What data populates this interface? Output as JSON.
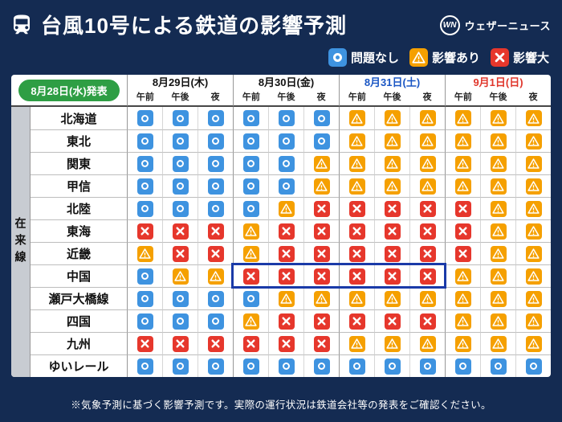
{
  "header": {
    "title": "台風10号による鉄道の影響予測",
    "logo_mark": "WN",
    "logo_text": "ウェザーニュース"
  },
  "legend": [
    {
      "symbol": "O",
      "label": "問題なし"
    },
    {
      "symbol": "A",
      "label": "影響あり"
    },
    {
      "symbol": "X",
      "label": "影響大"
    }
  ],
  "chart_data": {
    "type": "table",
    "title": "台風10号による鉄道の影響予測",
    "announced": "8月28日(水)発表",
    "category_label": "在来線",
    "time_slots": [
      "午前",
      "午後",
      "夜"
    ],
    "dates": [
      {
        "label": "8月29日(木)",
        "color": "#111111"
      },
      {
        "label": "8月30日(金)",
        "color": "#111111"
      },
      {
        "label": "8月31日(土)",
        "color": "#1a56c4"
      },
      {
        "label": "9月1日(日)",
        "color": "#e0362b"
      }
    ],
    "symbol_meanings": {
      "O": "問題なし",
      "A": "影響あり",
      "X": "影響大"
    },
    "rows": [
      {
        "name": "北海道",
        "cells": [
          "O",
          "O",
          "O",
          "O",
          "O",
          "O",
          "A",
          "A",
          "A",
          "A",
          "A",
          "A"
        ]
      },
      {
        "name": "東北",
        "cells": [
          "O",
          "O",
          "O",
          "O",
          "O",
          "O",
          "A",
          "A",
          "A",
          "A",
          "A",
          "A"
        ]
      },
      {
        "name": "関東",
        "cells": [
          "O",
          "O",
          "O",
          "O",
          "O",
          "A",
          "A",
          "A",
          "A",
          "A",
          "A",
          "A"
        ]
      },
      {
        "name": "甲信",
        "cells": [
          "O",
          "O",
          "O",
          "O",
          "O",
          "A",
          "A",
          "A",
          "A",
          "A",
          "A",
          "A"
        ]
      },
      {
        "name": "北陸",
        "cells": [
          "O",
          "O",
          "O",
          "O",
          "A",
          "X",
          "X",
          "X",
          "X",
          "X",
          "A",
          "A"
        ]
      },
      {
        "name": "東海",
        "cells": [
          "X",
          "X",
          "X",
          "A",
          "X",
          "X",
          "X",
          "X",
          "X",
          "X",
          "A",
          "A"
        ]
      },
      {
        "name": "近畿",
        "cells": [
          "A",
          "X",
          "X",
          "A",
          "X",
          "X",
          "X",
          "X",
          "X",
          "X",
          "A",
          "A"
        ]
      },
      {
        "name": "中国",
        "cells": [
          "O",
          "A",
          "A",
          "X",
          "X",
          "X",
          "X",
          "X",
          "X",
          "A",
          "A",
          "A"
        ]
      },
      {
        "name": "瀬戸大橋線",
        "cells": [
          "O",
          "O",
          "O",
          "O",
          "A",
          "A",
          "A",
          "A",
          "A",
          "A",
          "A",
          "A"
        ]
      },
      {
        "name": "四国",
        "cells": [
          "O",
          "O",
          "O",
          "A",
          "X",
          "X",
          "X",
          "X",
          "X",
          "A",
          "A",
          "A"
        ]
      },
      {
        "name": "九州",
        "cells": [
          "X",
          "X",
          "X",
          "X",
          "X",
          "X",
          "A",
          "A",
          "A",
          "A",
          "A",
          "A"
        ]
      },
      {
        "name": "ゆいレール",
        "cells": [
          "O",
          "O",
          "O",
          "O",
          "O",
          "O",
          "O",
          "O",
          "O",
          "O",
          "O",
          "O"
        ]
      }
    ],
    "highlight": {
      "row_index": 7,
      "cell_start": 3,
      "cell_end": 8
    }
  },
  "footer": {
    "note": "※気象予測に基づく影響予測です。実際の運行状況は鉄道会社等の発表をご確認ください。"
  },
  "colors": {
    "background": "#142b52",
    "no_problem_blue": "#3e93e0",
    "impact_orange": "#f5a000",
    "major_impact_red": "#e6372c",
    "announce_green": "#2e9e44",
    "saturday_blue": "#1a56c4",
    "sunday_red": "#e0362b",
    "highlight_border": "#1a3aa8",
    "category_strip_gray": "#c8ccd2"
  }
}
